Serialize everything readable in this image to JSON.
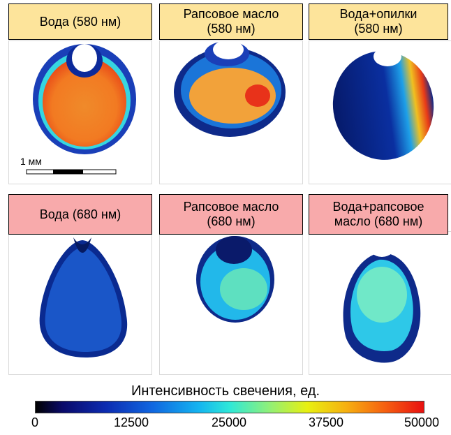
{
  "panels": [
    {
      "label_line1": "Вода (580 нм)",
      "label_line2": ""
    },
    {
      "label_line1": "Рапсовое масло",
      "label_line2": "(580 нм)"
    },
    {
      "label_line1": "Вода+опилки",
      "label_line2": "(580 нм)"
    },
    {
      "label_line1": "Вода (680 нм)",
      "label_line2": ""
    },
    {
      "label_line1": "Рапсовое масло",
      "label_line2": "(680 нм)"
    },
    {
      "label_line1": "Вода+рапсовое",
      "label_line2": "масло (680 нм)"
    }
  ],
  "scale_bar": {
    "label": "1 мм"
  },
  "colorbar": {
    "title": "Интенсивность свечения, ед.",
    "ticks": [
      "0",
      "12500",
      "25000",
      "37500",
      "50000"
    ],
    "colors": [
      "#000000",
      "#0c2bb0",
      "#14b4f0",
      "#8ef07a",
      "#e8f010",
      "#f66010",
      "#e81010"
    ]
  }
}
